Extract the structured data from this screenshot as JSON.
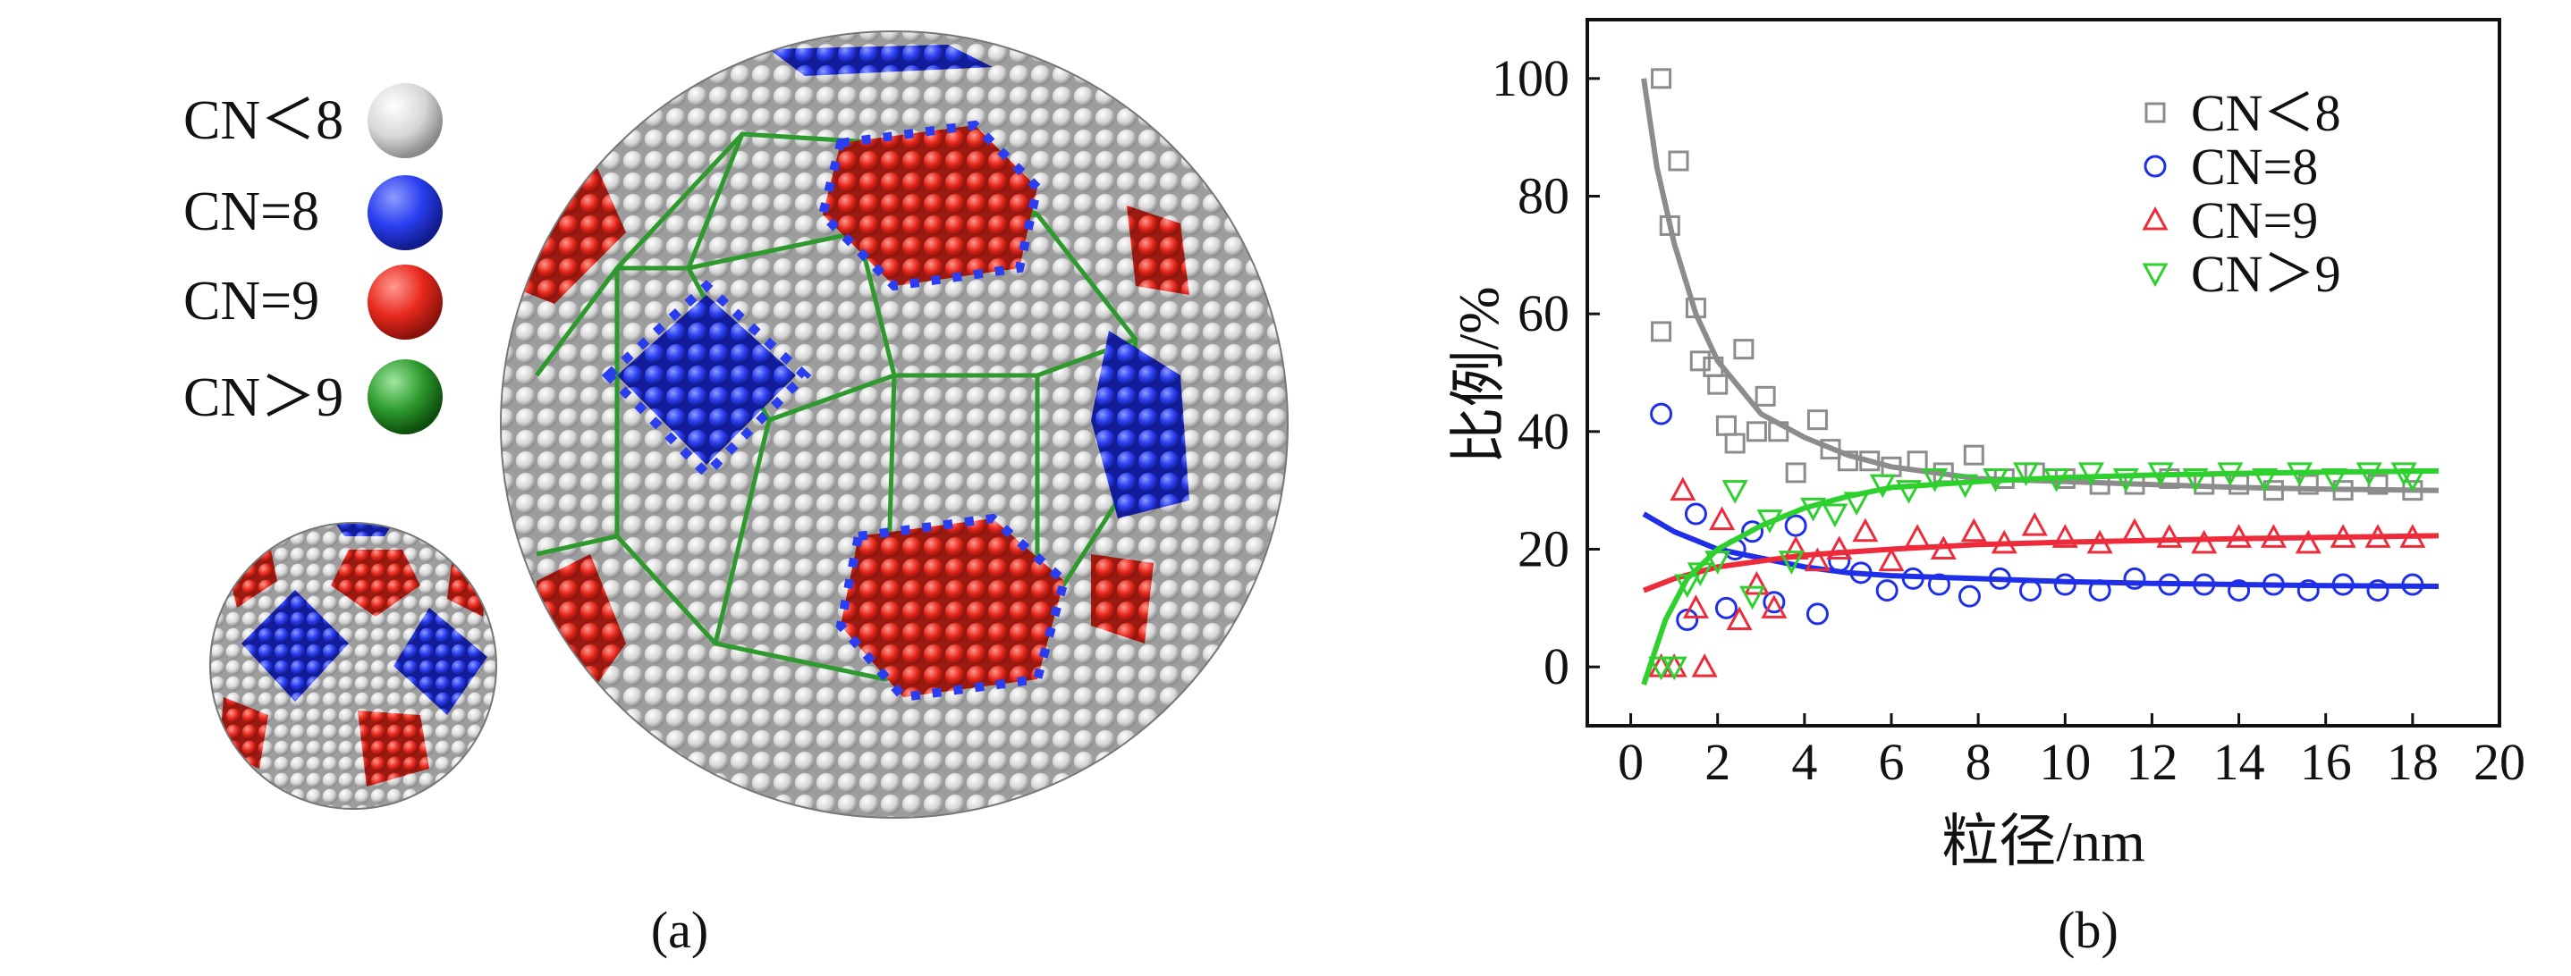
{
  "panel_a": {
    "caption": "(a)",
    "legend": [
      {
        "label": "CN＜8",
        "color": "#d4d4d4"
      },
      {
        "label": "CN=8",
        "color": "#2a3df0"
      },
      {
        "label": "CN=9",
        "color": "#e8291e"
      },
      {
        "label": "CN＞9",
        "color": "#2e9a2e"
      }
    ]
  },
  "panel_b": {
    "caption": "(b)"
  },
  "chart_data": {
    "type": "scatter",
    "xlabel": "粒径/nm",
    "ylabel": "比例/%",
    "xlim": [
      -1,
      20
    ],
    "ylim": [
      -10,
      110
    ],
    "xticks": [
      0,
      2,
      4,
      6,
      8,
      10,
      12,
      14,
      16,
      18,
      20
    ],
    "yticks": [
      0,
      20,
      40,
      60,
      80,
      100
    ],
    "grid": false,
    "legend_position": "top-right",
    "series": [
      {
        "name": "CN＜8",
        "marker": "square",
        "color": "#8c8c8c",
        "x": [
          0.7,
          0.7,
          0.9,
          1.1,
          1.5,
          1.6,
          1.9,
          2.0,
          2.2,
          2.4,
          2.6,
          2.9,
          3.1,
          3.4,
          3.8,
          4.3,
          4.6,
          5.0,
          5.5,
          6.0,
          6.6,
          7.2,
          7.9,
          8.6,
          9.3,
          10.0,
          10.8,
          11.6,
          12.4,
          13.2,
          14.0,
          14.8,
          15.6,
          16.4,
          17.2,
          18.0
        ],
        "y": [
          100,
          57,
          75,
          86,
          61,
          52,
          51,
          48,
          41,
          38,
          54,
          40,
          46,
          40,
          33,
          42,
          37,
          35,
          35,
          34,
          35,
          33,
          36,
          32,
          33,
          32,
          31,
          31,
          32,
          31,
          31,
          30,
          31,
          30,
          31,
          30
        ],
        "fit_x": [
          0.3,
          0.6,
          1.0,
          1.5,
          2.0,
          3.0,
          4.0,
          5.0,
          6.0,
          8.0,
          10.0,
          12.0,
          14.0,
          16.0,
          18.6
        ],
        "fit_y": [
          100,
          85,
          72,
          60,
          52,
          43,
          39,
          36,
          34,
          32,
          31.5,
          31,
          30.5,
          30.2,
          30
        ]
      },
      {
        "name": "CN=8",
        "marker": "circle",
        "color": "#1f2fe8",
        "x": [
          0.7,
          1.3,
          1.5,
          2.2,
          2.4,
          2.8,
          3.3,
          3.8,
          4.3,
          4.8,
          5.3,
          5.9,
          6.5,
          7.1,
          7.8,
          8.5,
          9.2,
          10.0,
          10.8,
          11.6,
          12.4,
          13.2,
          14.0,
          14.8,
          15.6,
          16.4,
          17.2,
          18.0
        ],
        "y": [
          43,
          8,
          26,
          10,
          20,
          23,
          11,
          24,
          9,
          18,
          16,
          13,
          15,
          14,
          12,
          15,
          13,
          14,
          13,
          15,
          14,
          14,
          13,
          14,
          13,
          14,
          13,
          14
        ],
        "fit_x": [
          0.3,
          1.0,
          2.0,
          3.0,
          4.0,
          5.0,
          6.0,
          8.0,
          10.0,
          12.0,
          14.0,
          16.0,
          18.6
        ],
        "fit_y": [
          26,
          23,
          20,
          18.5,
          17,
          16,
          15.5,
          15,
          14.5,
          14.2,
          14,
          13.8,
          13.7
        ]
      },
      {
        "name": "CN=9",
        "marker": "triangle-up",
        "color": "#ee2b3a",
        "x": [
          0.7,
          1.0,
          1.2,
          1.5,
          1.7,
          2.1,
          2.5,
          2.9,
          3.3,
          3.8,
          4.3,
          4.8,
          5.4,
          6.0,
          6.6,
          7.2,
          7.9,
          8.6,
          9.3,
          10.0,
          10.8,
          11.6,
          12.4,
          13.2,
          14.0,
          14.8,
          15.6,
          16.4,
          17.2,
          18.0
        ],
        "y": [
          0,
          0,
          30,
          10,
          0,
          25,
          8,
          14,
          10,
          20,
          18,
          20,
          23,
          18,
          22,
          20,
          23,
          21,
          24,
          22,
          21,
          23,
          22,
          21,
          22,
          22,
          21,
          22,
          22,
          22
        ],
        "fit_x": [
          0.3,
          1.0,
          2.0,
          3.0,
          4.0,
          5.0,
          6.0,
          8.0,
          10.0,
          12.0,
          14.0,
          16.0,
          18.6
        ],
        "fit_y": [
          13,
          15,
          17,
          18,
          19,
          19.5,
          20,
          20.8,
          21.2,
          21.5,
          21.8,
          22,
          22.3
        ]
      },
      {
        "name": "CN＞9",
        "marker": "triangle-down",
        "color": "#2ed02e",
        "x": [
          0.7,
          1.0,
          1.3,
          1.6,
          2.0,
          2.4,
          2.8,
          3.2,
          3.7,
          4.2,
          4.7,
          5.2,
          5.8,
          6.4,
          7.0,
          7.7,
          8.4,
          9.1,
          9.8,
          10.6,
          11.4,
          12.2,
          13.0,
          13.8,
          14.6,
          15.4,
          16.2,
          17.0,
          17.8,
          18.0
        ],
        "y": [
          0,
          0,
          14,
          16,
          18,
          30,
          12,
          25,
          18,
          27,
          26,
          28,
          31,
          30,
          32,
          31,
          32,
          33,
          32,
          33,
          32,
          33,
          32,
          33,
          32,
          33,
          32,
          33,
          33,
          32
        ],
        "fit_x": [
          0.3,
          0.8,
          1.3,
          2.0,
          3.0,
          4.0,
          5.0,
          6.0,
          8.0,
          10.0,
          12.0,
          14.0,
          16.0,
          18.6
        ],
        "fit_y": [
          -3,
          8,
          15,
          20,
          24,
          27,
          29,
          30.5,
          31.5,
          32.2,
          32.6,
          32.9,
          33.1,
          33.3
        ]
      }
    ]
  }
}
